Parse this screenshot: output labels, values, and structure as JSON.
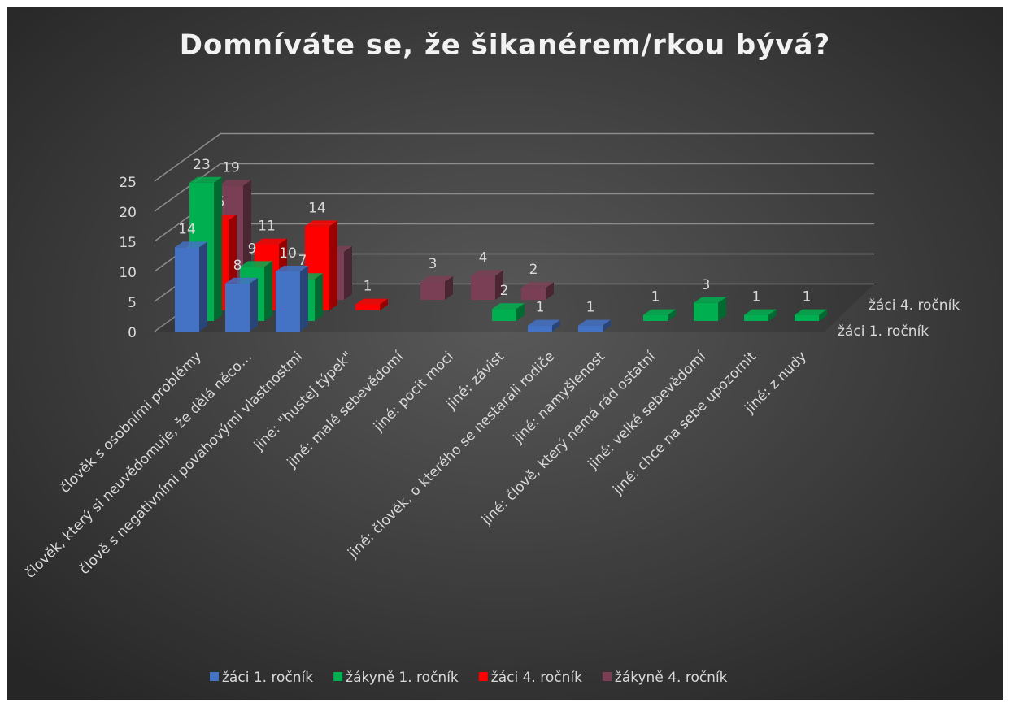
{
  "chart_data": {
    "type": "bar3d",
    "title": "Domníváte se, že šikanérem/rkou bývá?",
    "categories": [
      "člověk s osobními problémy",
      "člověk, který si neuvědomuje, že dělá něco…",
      "člově s negativními povahovými vlastnostmi",
      "jiné: \"hustej týpek\"",
      "jiné: malé sebevědomí",
      "jiné: pocit moci",
      "jiné: závist",
      "jiné: člověk, o kterého se nestarali rodiče",
      "jiné: namyšlenost",
      "jiné: člově, který nemá rád ostatní",
      "jiné: velké sebevědomí",
      "jiné: chce na sebe upozornit",
      "jiné: z nudy"
    ],
    "series": [
      {
        "name": "žáci 1. ročník",
        "color": "#4472c4",
        "values": [
          14,
          8,
          10,
          null,
          null,
          null,
          null,
          1,
          1,
          null,
          null,
          null,
          null
        ]
      },
      {
        "name": "žákyně 1. ročník",
        "color": "#00b050",
        "values": [
          23,
          9,
          7,
          null,
          null,
          null,
          2,
          null,
          null,
          1,
          3,
          1,
          1
        ]
      },
      {
        "name": "žáci 4. ročník",
        "color": "#ff0000",
        "values": [
          15,
          11,
          14,
          1,
          null,
          null,
          null,
          null,
          null,
          null,
          null,
          null,
          null
        ]
      },
      {
        "name": "žákyně 4. ročník",
        "color": "#7b3f55",
        "values": [
          19,
          null,
          8,
          null,
          3,
          4,
          2,
          null,
          null,
          null,
          null,
          null,
          null
        ]
      }
    ],
    "ylim": [
      0,
      25
    ],
    "yticks": [
      0,
      5,
      10,
      15,
      20,
      25
    ],
    "grid": true,
    "legend": "bottom"
  }
}
